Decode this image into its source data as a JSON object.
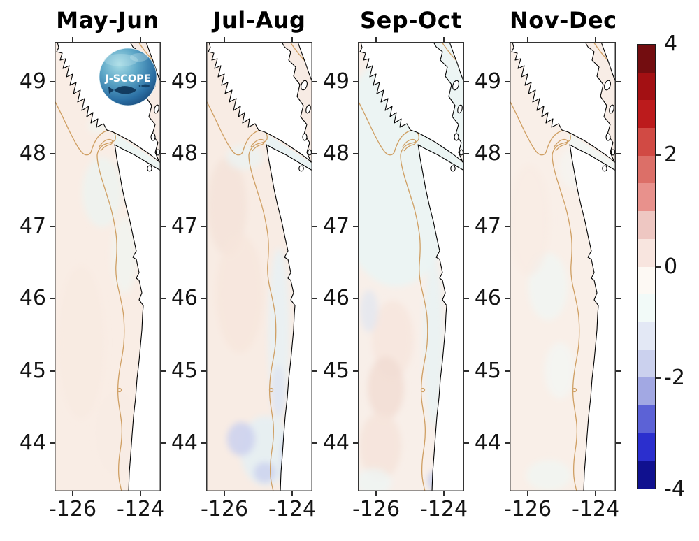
{
  "figure": {
    "background": "#ffffff",
    "description": "Four-panel coastal map figure of bimonthly anomaly fields for the Pacific Northwest shelf (J-SCOPE domain) with a shared diverging red-blue colorbar"
  },
  "logo": {
    "text": "J-SCOPE"
  },
  "panels": [
    {
      "title": "May-Jun"
    },
    {
      "title": "Jul-Aug"
    },
    {
      "title": "Sep-Oct"
    },
    {
      "title": "Nov-Dec"
    }
  ],
  "chart_data": {
    "type": "heatmap",
    "subtype": "map-small-multiples",
    "title": "",
    "panels": [
      {
        "title": "May-Jun",
        "anomaly_regions": [
          {
            "region": "offshore basin",
            "value": 0.2
          },
          {
            "region": "mid-shelf 46-48N",
            "value": 0.0
          },
          {
            "region": "Strait of Juan de Fuca",
            "value": -0.1
          }
        ]
      },
      {
        "title": "Jul-Aug",
        "anomaly_regions": [
          {
            "region": "offshore basin",
            "value": 0.3
          },
          {
            "region": "nearshore band 43.5-46N",
            "value": -0.2
          },
          {
            "region": "coastal patches near 43.5-44.5N",
            "value": -0.8
          },
          {
            "region": "Strait of Juan de Fuca",
            "value": -0.1
          }
        ]
      },
      {
        "title": "Sep-Oct",
        "anomaly_regions": [
          {
            "region": "northern offshore",
            "value": -0.1
          },
          {
            "region": "southern offshore patches",
            "value": 0.3
          },
          {
            "region": "nearshore band",
            "value": -0.2
          },
          {
            "region": "coastal spot near 43.6N",
            "value": -1.0
          }
        ]
      },
      {
        "title": "Nov-Dec",
        "anomaly_regions": [
          {
            "region": "offshore basin",
            "value": 0.2
          },
          {
            "region": "scattered mid-shelf patches",
            "value": -0.1
          }
        ]
      }
    ],
    "x_axis": {
      "ticks": [
        -126,
        -124
      ],
      "tick_labels": [
        "-126",
        "-124"
      ],
      "range": [
        -126.55,
        -123.35
      ],
      "grid": false
    },
    "y_axis": {
      "ticks": [
        49,
        48,
        47,
        46,
        45,
        44
      ],
      "tick_labels": [
        "49",
        "48",
        "47",
        "46",
        "45",
        "44"
      ],
      "range": [
        43.33,
        49.55
      ],
      "grid": false
    },
    "colorbar": {
      "orientation": "vertical",
      "range": [
        -4,
        4
      ],
      "segment_step": 0.5,
      "n_segments": 16,
      "tick_values": [
        4,
        2,
        0,
        -2,
        -4
      ],
      "tick_labels": [
        "4",
        "2",
        "0",
        "-2",
        "-4"
      ],
      "colors_top_to_bottom": [
        "#730d10",
        "#a31013",
        "#bc1b1c",
        "#d14a44",
        "#dc6f68",
        "#e8918c",
        "#eec7c2",
        "#f8e5df",
        "#fdf9f4",
        "#f2faf8",
        "#e3e8f5",
        "#cbd1ee",
        "#a2a8e3",
        "#5c62d6",
        "#2b2fce",
        "#10118f"
      ]
    },
    "map_features": {
      "land_fill": "#ffffff",
      "coastline_color": "#000000",
      "isobath_contour_color": "#cf9f63",
      "frame_color": "#333333"
    }
  }
}
